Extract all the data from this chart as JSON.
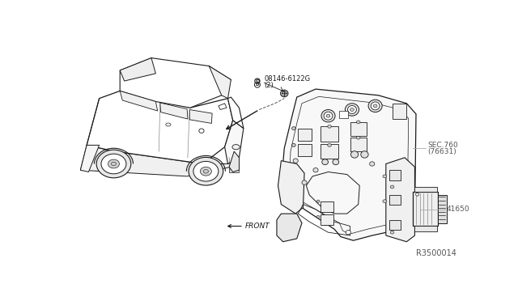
{
  "bg_color": "#ffffff",
  "line_color": "#1a1a1a",
  "gray_line": "#aaaaaa",
  "fig_width": 6.4,
  "fig_height": 3.72,
  "dpi": 100,
  "label_08146": "Ð08146-6122G\n(2)",
  "label_sec": "SEC.760\n(76631)",
  "label_41650": "41650",
  "label_ref": "R3500014",
  "label_front": "←FRONT"
}
